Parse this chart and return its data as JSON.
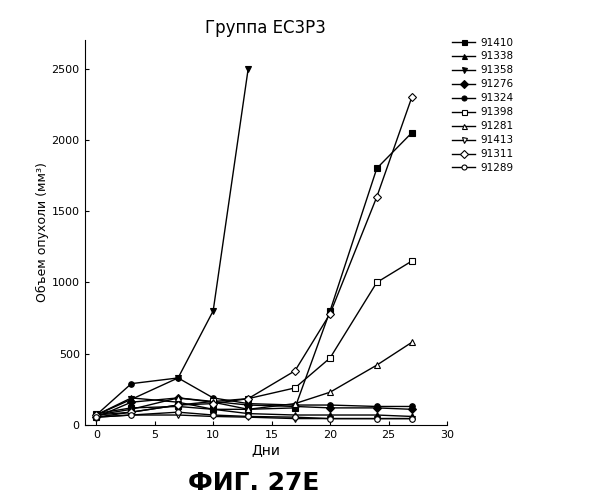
{
  "title": "Группа ЕС3Р3",
  "xlabel": "Дни",
  "ylabel": "Объем опухоли (мм³)",
  "figure_label": "ФИГ. 27Е",
  "xlim": [
    -1,
    30
  ],
  "ylim": [
    0,
    2700
  ],
  "yticks": [
    0,
    500,
    1000,
    1500,
    2000,
    2500
  ],
  "xticks": [
    0,
    5,
    10,
    15,
    20,
    25,
    30
  ],
  "series": [
    {
      "label": "91410",
      "marker": "s",
      "fillstyle": "full",
      "x": [
        0,
        3,
        7,
        10,
        13,
        17,
        20,
        24,
        27
      ],
      "y": [
        80,
        120,
        130,
        110,
        110,
        120,
        800,
        1800,
        2050
      ]
    },
    {
      "label": "91338",
      "marker": "^",
      "fillstyle": "full",
      "x": [
        0,
        3,
        7,
        10,
        13,
        17,
        20,
        24,
        27
      ],
      "y": [
        70,
        190,
        160,
        110,
        80,
        70,
        70,
        70,
        60
      ]
    },
    {
      "label": "91358",
      "marker": "v",
      "fillstyle": "full",
      "x": [
        0,
        3,
        7,
        10,
        13
      ],
      "y": [
        70,
        180,
        330,
        800,
        2500
      ]
    },
    {
      "label": "91276",
      "marker": "D",
      "fillstyle": "full",
      "x": [
        0,
        3,
        7,
        10,
        13,
        17,
        20,
        24,
        27
      ],
      "y": [
        55,
        160,
        190,
        165,
        140,
        130,
        120,
        120,
        110
      ]
    },
    {
      "label": "91324",
      "marker": "o",
      "fillstyle": "full",
      "x": [
        0,
        3,
        7,
        10,
        13,
        17,
        20,
        24,
        27
      ],
      "y": [
        70,
        290,
        330,
        190,
        150,
        140,
        140,
        130,
        130
      ]
    },
    {
      "label": "91398",
      "marker": "s",
      "fillstyle": "none",
      "x": [
        0,
        3,
        7,
        10,
        13,
        17,
        20,
        24,
        27
      ],
      "y": [
        55,
        90,
        140,
        165,
        185,
        260,
        470,
        1000,
        1150
      ]
    },
    {
      "label": "91281",
      "marker": "^",
      "fillstyle": "none",
      "x": [
        0,
        3,
        7,
        10,
        13,
        17,
        20,
        24,
        27
      ],
      "y": [
        70,
        110,
        190,
        160,
        110,
        150,
        230,
        420,
        580
      ]
    },
    {
      "label": "91413",
      "marker": "v",
      "fillstyle": "none",
      "x": [
        0,
        3,
        7,
        10,
        13,
        17,
        20,
        24,
        27
      ],
      "y": [
        55,
        70,
        70,
        60,
        55,
        45,
        45,
        45,
        45
      ]
    },
    {
      "label": "91311",
      "marker": "D",
      "fillstyle": "none",
      "x": [
        0,
        3,
        7,
        10,
        13,
        17,
        20,
        24,
        27
      ],
      "y": [
        70,
        90,
        140,
        150,
        185,
        380,
        780,
        1600,
        2300
      ]
    },
    {
      "label": "91289",
      "marker": "o",
      "fillstyle": "none",
      "x": [
        0,
        3,
        7,
        10,
        13,
        17,
        20,
        24,
        27
      ],
      "y": [
        55,
        70,
        90,
        70,
        60,
        55,
        45,
        45,
        45
      ]
    }
  ],
  "line_color": "black",
  "line_width": 1.0,
  "marker_size": 4
}
